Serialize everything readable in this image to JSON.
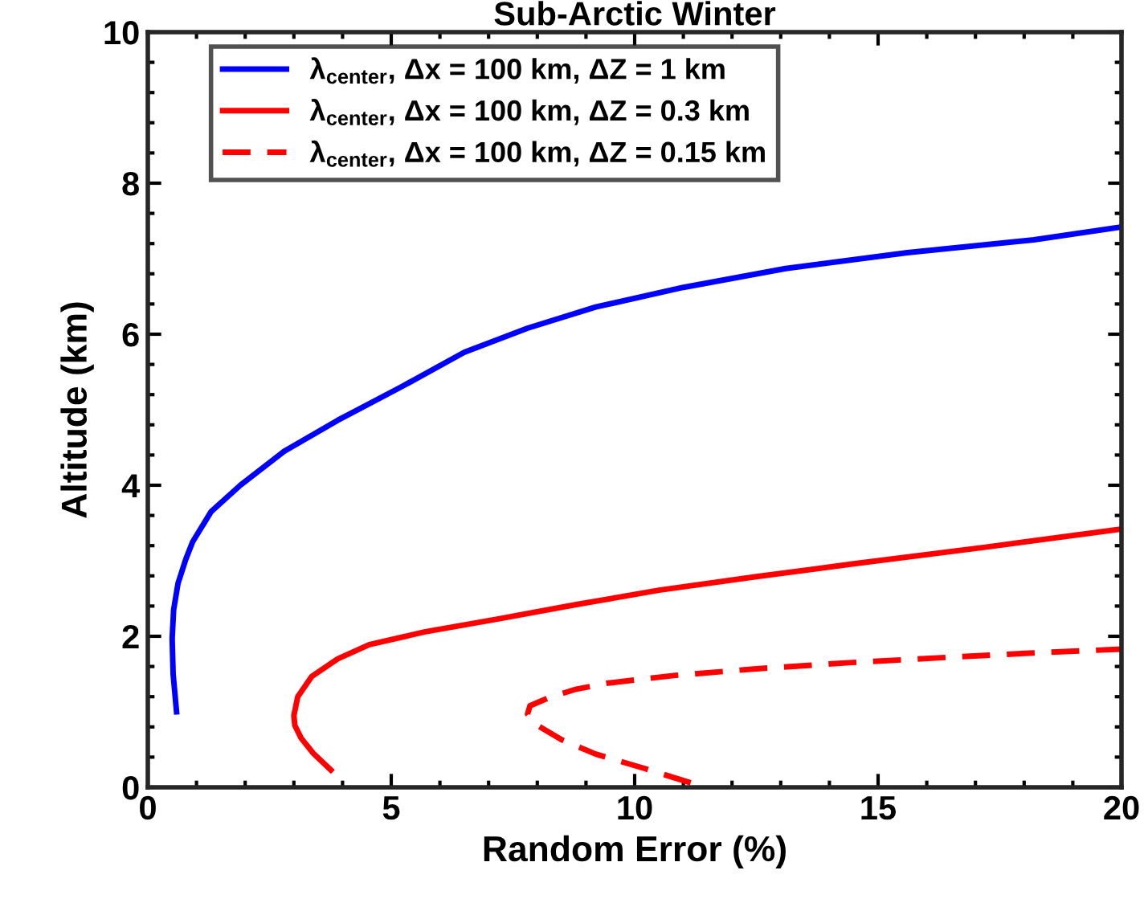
{
  "chart_data": {
    "type": "line",
    "title": "Sub-Arctic Winter",
    "xlabel": "Random Error (%)",
    "ylabel": "Altitude (km)",
    "xlim": [
      0,
      20
    ],
    "xticks": [
      0,
      5,
      10,
      15,
      20
    ],
    "ylim": [
      0,
      10
    ],
    "yticks": [
      0,
      2,
      4,
      6,
      8,
      10
    ],
    "grid": false,
    "legend": "top left",
    "series": [
      {
        "name": "λ$_{center}$, Δx = 100 km, ΔZ = 1 km",
        "color": "#0000ff",
        "line_style": "solid",
        "x": [
          0.59,
          0.52,
          0.5,
          0.53,
          0.62,
          0.78,
          0.92,
          1.3,
          1.9,
          2.8,
          3.9,
          5.2,
          6.5,
          7.8,
          9.2,
          11.0,
          13.1,
          15.6,
          18.2,
          20
        ],
        "values": [
          1.0,
          1.5,
          1.97,
          2.35,
          2.7,
          3.02,
          3.25,
          3.65,
          4.0,
          4.45,
          4.86,
          5.3,
          5.76,
          6.08,
          6.36,
          6.62,
          6.87,
          7.08,
          7.25,
          7.42
        ]
      },
      {
        "name": "λ$_{center}$, Δx = 100 km, ΔZ = 0.3 km",
        "color": "#ff0000",
        "line_style": "solid",
        "x": [
          3.76,
          3.4,
          3.15,
          3.02,
          3.0,
          3.08,
          3.37,
          3.9,
          4.55,
          5.7,
          7.2,
          8.8,
          10.5,
          12.5,
          14.5,
          17.2,
          20
        ],
        "values": [
          0.23,
          0.45,
          0.65,
          0.82,
          0.95,
          1.2,
          1.47,
          1.7,
          1.89,
          2.06,
          2.23,
          2.42,
          2.61,
          2.79,
          2.96,
          3.18,
          3.42
        ]
      },
      {
        "name": "λ$_{center}$, Δx = 100 km, ΔZ = 0.15 km",
        "color": "#ff0000",
        "line_style": "dashed",
        "x": [
          11.15,
          10.2,
          9.2,
          8.5,
          8.0,
          7.8,
          7.85,
          8.25,
          8.8,
          9.45,
          10.8,
          12.5,
          14.4,
          16.4,
          18.2,
          20
        ],
        "values": [
          0.06,
          0.25,
          0.44,
          0.63,
          0.82,
          0.97,
          1.08,
          1.19,
          1.3,
          1.38,
          1.48,
          1.57,
          1.65,
          1.72,
          1.78,
          1.83
        ]
      }
    ]
  }
}
